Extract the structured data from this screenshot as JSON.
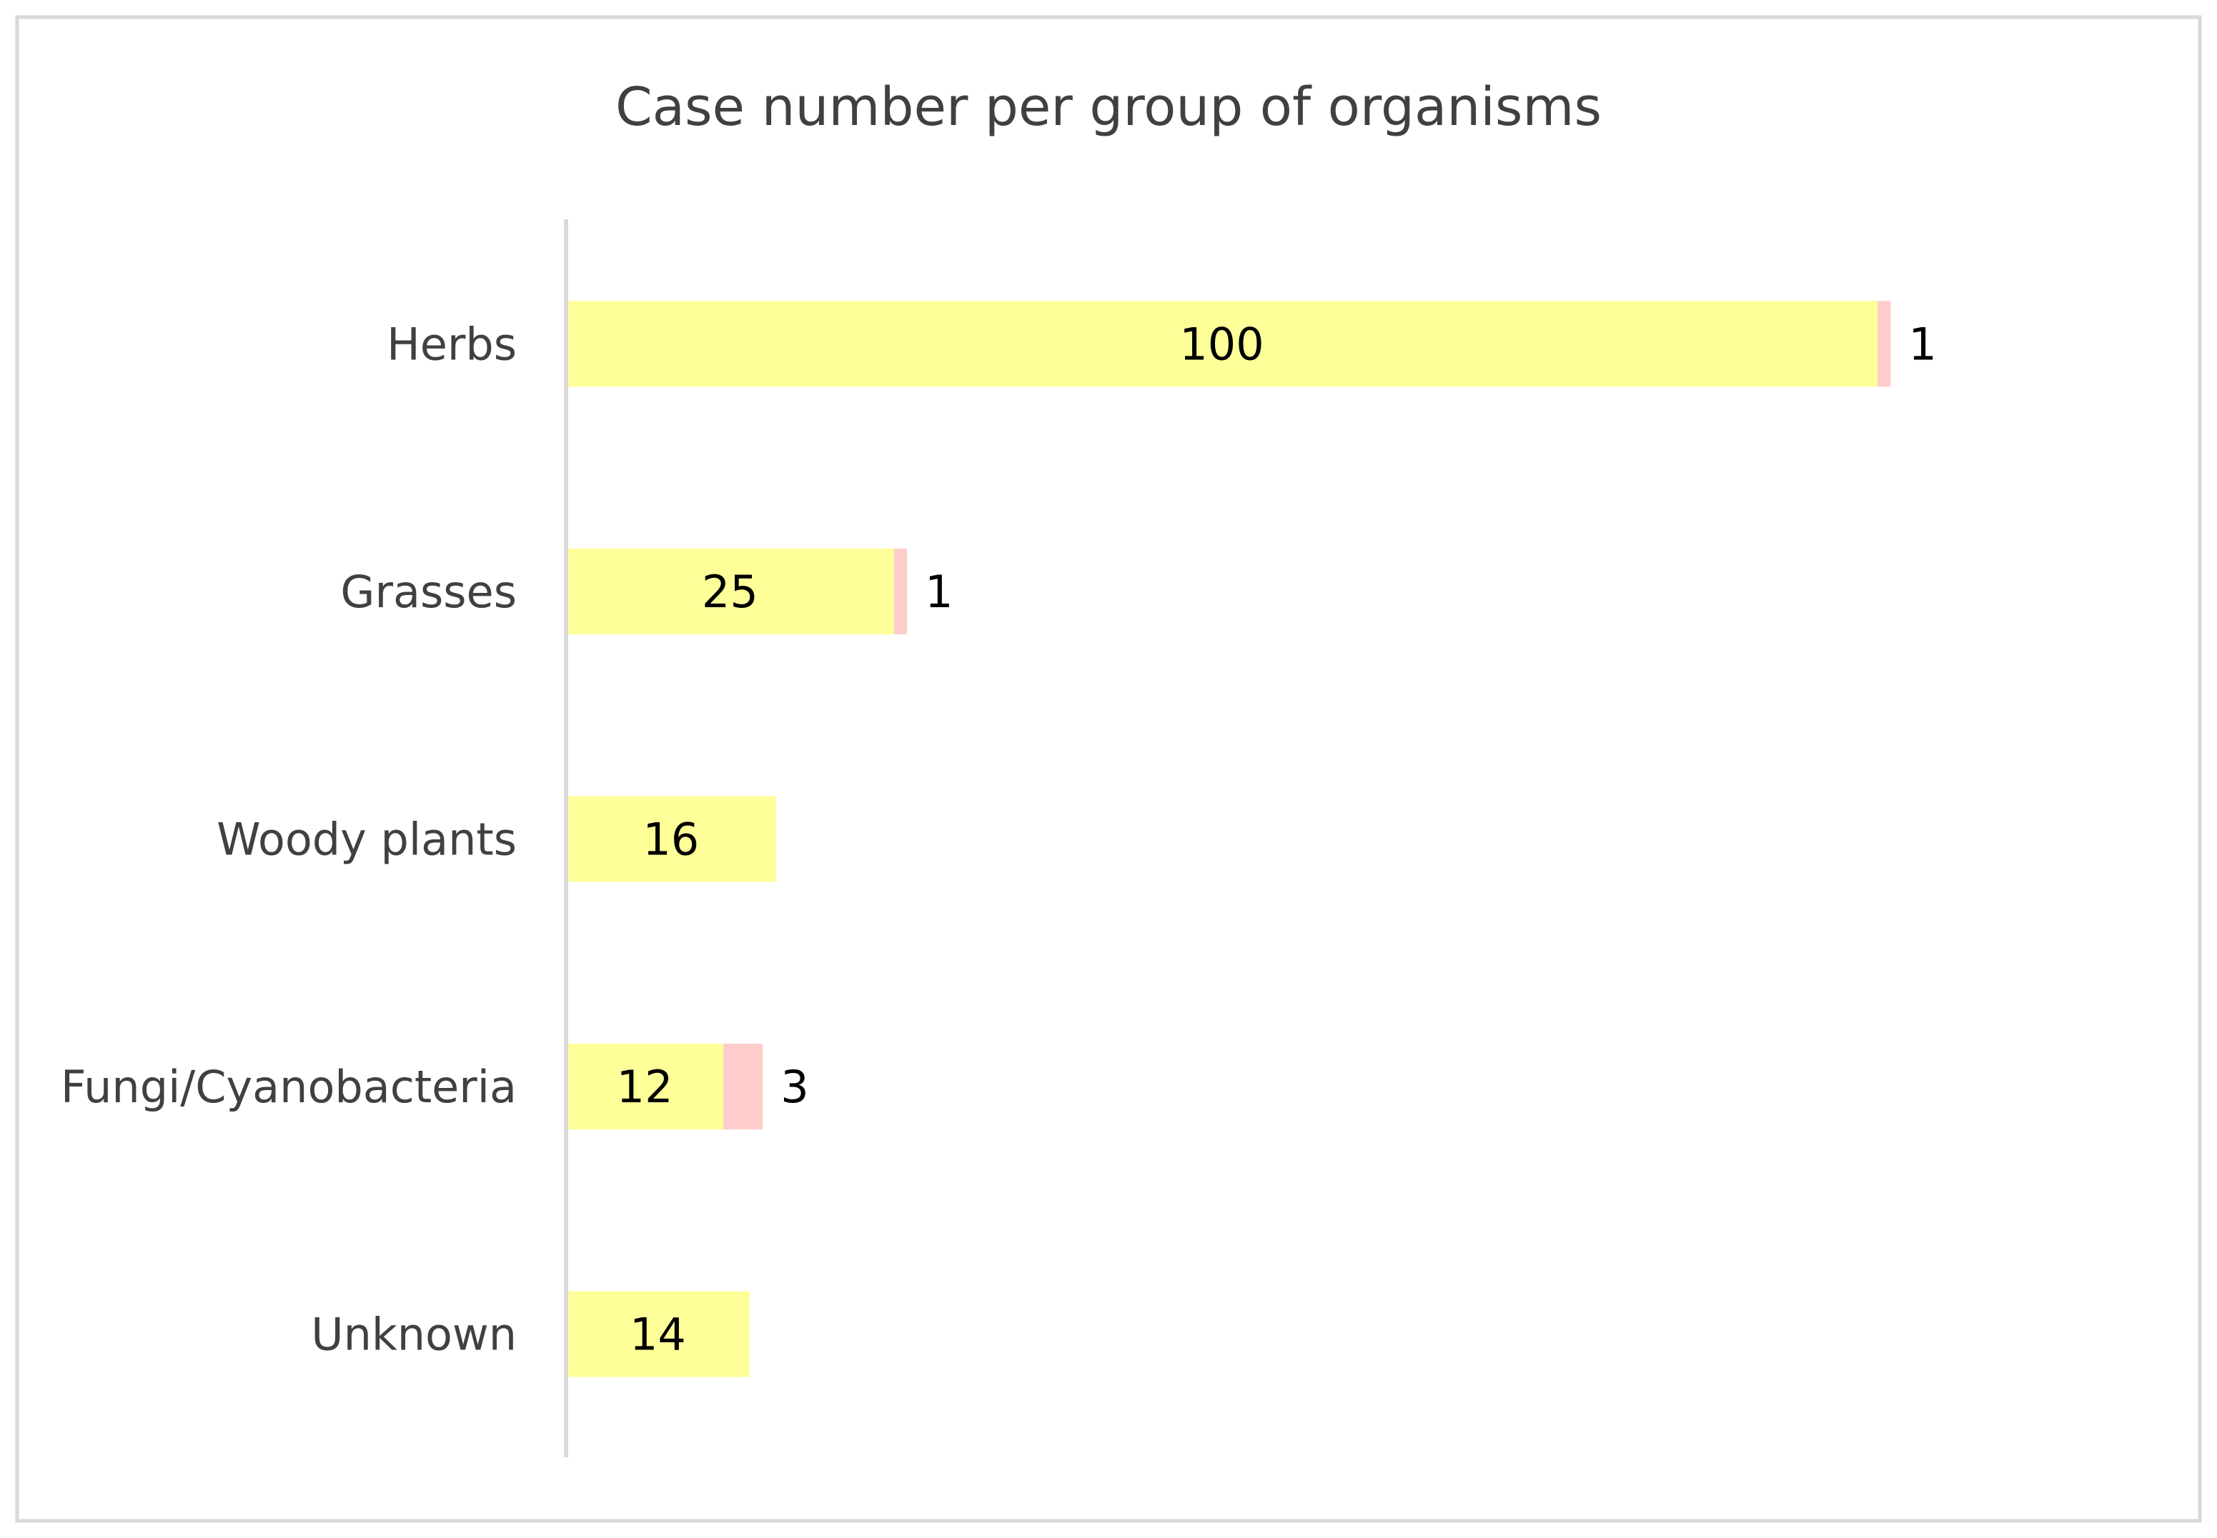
{
  "chart_data": {
    "type": "bar",
    "orientation": "horizontal",
    "stacked": true,
    "title": "Case number per group of organisms",
    "categories": [
      "Herbs",
      "Grasses",
      "Woody plants",
      "Fungi/Cyanobacteria",
      "Unknown"
    ],
    "series": [
      {
        "values": [
          100,
          25,
          16,
          12,
          14
        ],
        "color": "#FFFF99"
      },
      {
        "values": [
          1,
          1,
          0,
          3,
          0
        ],
        "color": "#FFCCCC"
      }
    ],
    "xlim": [
      0,
      125
    ],
    "grid": false,
    "legend": "none",
    "axis_color": "#D9D9D9",
    "frame_color": "#D9D9D9"
  }
}
